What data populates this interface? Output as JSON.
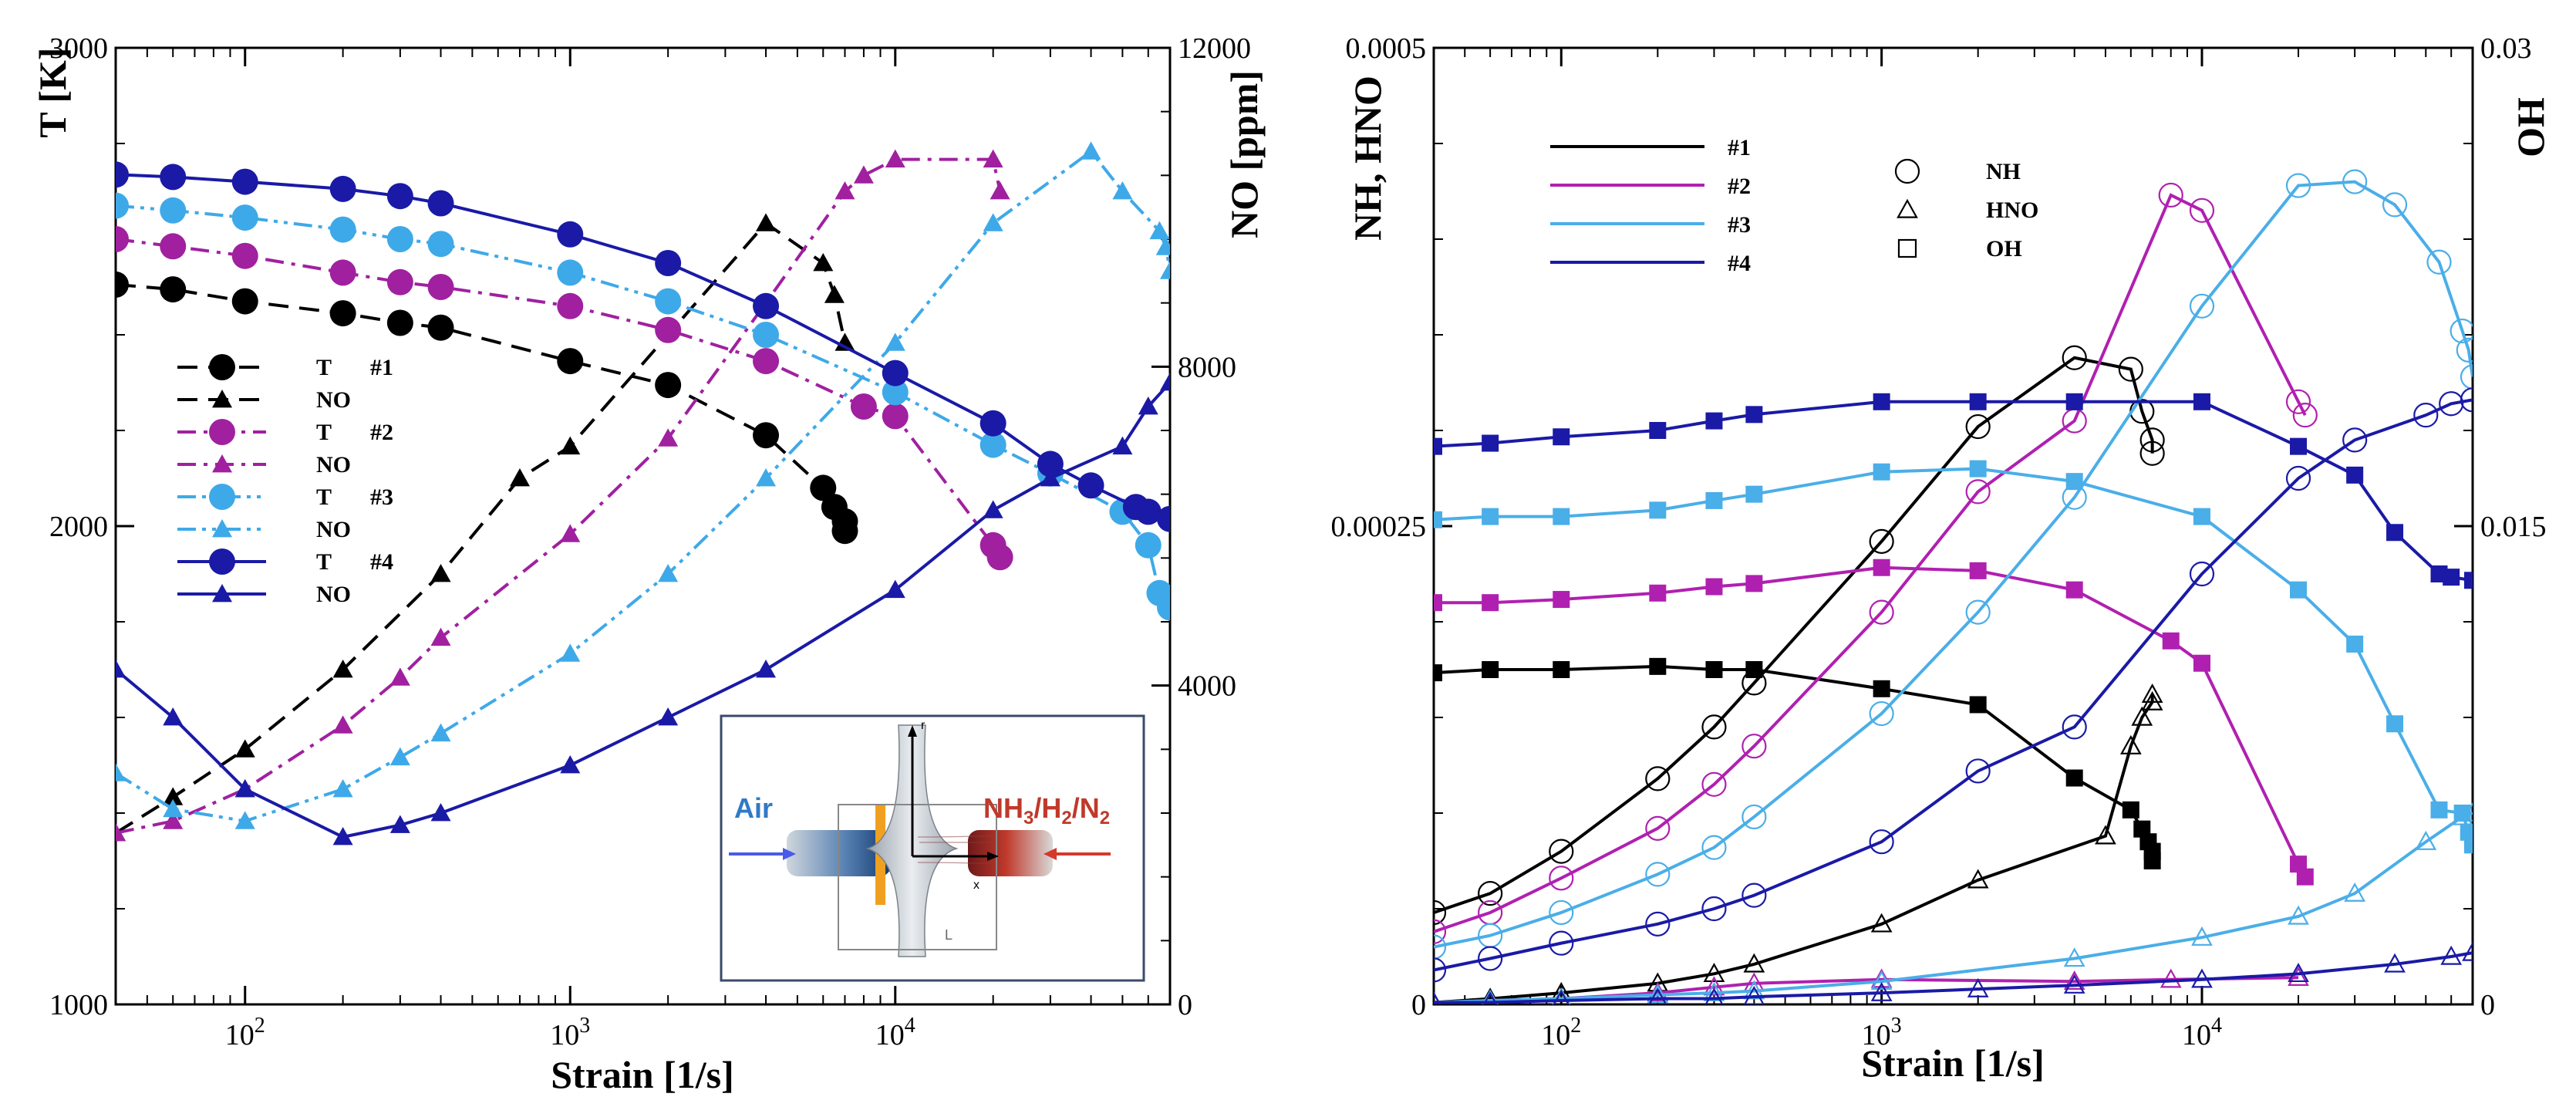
{
  "chart_data": [
    {
      "type": "line",
      "title": "",
      "xlabel": "Strain [1/s]",
      "ylabel": "T [K]",
      "y2label": "NO [ppm]",
      "xscale": "log",
      "xlim": [
        40,
        70000
      ],
      "ylim": [
        1000,
        3000
      ],
      "y2lim": [
        0,
        12000
      ],
      "xtick_labels": [
        "10^2",
        "10^3",
        "10^4"
      ],
      "xtick_values": [
        100,
        1000,
        10000
      ],
      "ytick_labels": [
        "1000",
        "2000",
        "3000"
      ],
      "ytick_values": [
        1000,
        2000,
        3000
      ],
      "y2tick_labels": [
        "0",
        "4000",
        "8000",
        "12000"
      ],
      "y2tick_values": [
        0,
        4000,
        8000,
        12000
      ],
      "legend": [
        {
          "label": "T",
          "case": "#1",
          "color": "#000000",
          "dash": "dash",
          "marker": "circle"
        },
        {
          "label": "NO",
          "case": "",
          "color": "#000000",
          "dash": "dash",
          "marker": "triangle"
        },
        {
          "label": "T",
          "case": "#2",
          "color": "#a020a0",
          "dash": "dashdot",
          "marker": "circle"
        },
        {
          "label": "NO",
          "case": "",
          "color": "#a020a0",
          "dash": "dashdot",
          "marker": "triangle"
        },
        {
          "label": "T",
          "case": "#3",
          "color": "#3ea9e8",
          "dash": "dashdotdot",
          "marker": "circle"
        },
        {
          "label": "NO",
          "case": "",
          "color": "#3ea9e8",
          "dash": "dashdotdot",
          "marker": "triangle"
        },
        {
          "label": "T",
          "case": "#4",
          "color": "#1a1aa6",
          "dash": "solid",
          "marker": "circle"
        },
        {
          "label": "NO",
          "case": "",
          "color": "#1a1aa6",
          "dash": "solid",
          "marker": "triangle"
        }
      ],
      "series": [
        {
          "name": "T #1",
          "axis": "left",
          "color": "#000000",
          "dash": "dash",
          "marker": "circle",
          "filled": true,
          "x": [
            40,
            60,
            100,
            200,
            300,
            400,
            1000,
            2000,
            4000,
            6000,
            6500,
            7000,
            7000
          ],
          "y": [
            2505,
            2495,
            2470,
            2445,
            2425,
            2415,
            2345,
            2295,
            2190,
            2080,
            2040,
            2010,
            1990
          ]
        },
        {
          "name": "NO #1",
          "axis": "right",
          "color": "#000000",
          "dash": "dash",
          "marker": "triangle",
          "filled": true,
          "x": [
            40,
            60,
            100,
            200,
            400,
            700,
            1000,
            4000,
            6000,
            6500,
            7000
          ],
          "y": [
            2150,
            2600,
            3200,
            4200,
            5400,
            6600,
            7000,
            9800,
            9300,
            8900,
            8300
          ]
        },
        {
          "name": "T #2",
          "axis": "left",
          "color": "#a020a0",
          "dash": "dashdot",
          "marker": "circle",
          "filled": true,
          "x": [
            40,
            60,
            100,
            200,
            300,
            400,
            1000,
            2000,
            4000,
            8000,
            10000,
            20000,
            21000
          ],
          "y": [
            2600,
            2585,
            2565,
            2530,
            2510,
            2500,
            2460,
            2410,
            2345,
            2250,
            2230,
            1960,
            1935
          ]
        },
        {
          "name": "NO #2",
          "axis": "right",
          "color": "#a020a0",
          "dash": "dashdot",
          "marker": "triangle",
          "filled": true,
          "x": [
            40,
            60,
            100,
            200,
            300,
            400,
            1000,
            2000,
            4000,
            7000,
            8000,
            10000,
            20000,
            21000
          ],
          "y": [
            2150,
            2300,
            2700,
            3500,
            4100,
            4600,
            5900,
            7100,
            8800,
            10200,
            10400,
            10600,
            10600,
            10200
          ]
        },
        {
          "name": "T #3",
          "axis": "left",
          "color": "#3ea9e8",
          "dash": "dashdotdot",
          "marker": "circle",
          "filled": true,
          "x": [
            40,
            60,
            100,
            200,
            300,
            400,
            1000,
            2000,
            4000,
            10000,
            20000,
            30000,
            50000,
            60000,
            65000,
            70000
          ],
          "y": [
            2670,
            2660,
            2645,
            2620,
            2600,
            2590,
            2530,
            2470,
            2400,
            2280,
            2170,
            2110,
            2030,
            1960,
            1860,
            1830
          ]
        },
        {
          "name": "NO #3",
          "axis": "right",
          "color": "#3ea9e8",
          "dash": "dashdotdot",
          "marker": "triangle",
          "filled": true,
          "x": [
            40,
            60,
            100,
            200,
            300,
            400,
            1000,
            2000,
            4000,
            10000,
            20000,
            40000,
            50000,
            65000,
            68000,
            70000
          ],
          "y": [
            2900,
            2450,
            2300,
            2700,
            3100,
            3400,
            4400,
            5400,
            6600,
            8300,
            9800,
            10700,
            10200,
            9700,
            9500,
            9200
          ]
        },
        {
          "name": "T #4",
          "axis": "left",
          "color": "#1a1aa6",
          "dash": "solid",
          "marker": "circle",
          "filled": true,
          "x": [
            40,
            60,
            100,
            200,
            300,
            400,
            1000,
            2000,
            4000,
            10000,
            20000,
            30000,
            40000,
            55000,
            60000,
            70000
          ],
          "y": [
            2735,
            2730,
            2720,
            2705,
            2690,
            2675,
            2610,
            2550,
            2460,
            2320,
            2215,
            2130,
            2085,
            2040,
            2030,
            2015
          ]
        },
        {
          "name": "NO #4",
          "axis": "right",
          "color": "#1a1aa6",
          "dash": "solid",
          "marker": "triangle",
          "filled": true,
          "x": [
            40,
            60,
            100,
            200,
            300,
            400,
            1000,
            2000,
            4000,
            10000,
            20000,
            30000,
            50000,
            60000,
            70000
          ],
          "y": [
            4200,
            3600,
            2700,
            2100,
            2250,
            2400,
            3000,
            3600,
            4200,
            5200,
            6200,
            6600,
            7000,
            7500,
            7800
          ]
        }
      ],
      "inset": {
        "left_label": "Air",
        "right_label": "NH",
        "right_sub1": "3",
        "right_mid1": "/H",
        "right_sub2": "2",
        "right_mid2": "/N",
        "right_sub3": "2",
        "axis_r": "r",
        "axis_x": "x",
        "axis_L": "L"
      }
    },
    {
      "type": "line",
      "title": "",
      "xlabel": "Strain [1/s]",
      "ylabel": "NH, HNO",
      "y2label": "OH",
      "xscale": "log",
      "xlim": [
        40,
        70000
      ],
      "ylim": [
        0,
        0.0005
      ],
      "y2lim": [
        0,
        0.03
      ],
      "xtick_labels": [
        "10^2",
        "10^3",
        "10^4"
      ],
      "xtick_values": [
        100,
        1000,
        10000
      ],
      "ytick_labels": [
        "0",
        "0.00025",
        "0.0005"
      ],
      "ytick_values": [
        0,
        0.00025,
        0.0005
      ],
      "y2tick_labels": [
        "0",
        "0.015",
        "0.03"
      ],
      "y2tick_values": [
        0,
        0.015,
        0.03
      ],
      "legend_cases": [
        {
          "label": "#1",
          "color": "#000000"
        },
        {
          "label": "#2",
          "color": "#b020b0"
        },
        {
          "label": "#3",
          "color": "#4aaee8"
        },
        {
          "label": "#4",
          "color": "#1a1aa6"
        }
      ],
      "legend_species": [
        {
          "label": "NH",
          "marker": "circle"
        },
        {
          "label": "HNO",
          "marker": "triangle"
        },
        {
          "label": "OH",
          "marker": "square"
        }
      ],
      "series": [
        {
          "name": "NH #1",
          "axis": "left",
          "color": "#000000",
          "marker": "circle",
          "filled": false,
          "x": [
            40,
            60,
            100,
            200,
            300,
            400,
            1000,
            2000,
            4000,
            6000,
            6500,
            7000,
            7000
          ],
          "y": [
            4.8e-05,
            5.8e-05,
            8e-05,
            0.000118,
            0.000145,
            0.000168,
            0.000242,
            0.000302,
            0.000338,
            0.000332,
            0.00031,
            0.000295,
            0.000288
          ]
        },
        {
          "name": "HNO #1",
          "axis": "left",
          "color": "#000000",
          "marker": "triangle",
          "filled": false,
          "x": [
            40,
            60,
            100,
            200,
            300,
            400,
            1000,
            2000,
            5000,
            6000,
            6500,
            7000,
            7000
          ],
          "y": [
            1e-06,
            3e-06,
            6e-06,
            1.1e-05,
            1.6e-05,
            2.1e-05,
            4.2e-05,
            6.5e-05,
            8.8e-05,
            0.000135,
            0.00015,
            0.000158,
            0.000162
          ]
        },
        {
          "name": "OH #1",
          "axis": "right",
          "color": "#000000",
          "marker": "square",
          "filled": true,
          "x": [
            40,
            60,
            100,
            200,
            300,
            400,
            1000,
            2000,
            4000,
            6000,
            6500,
            6800,
            7000,
            7000
          ],
          "y": [
            0.0104,
            0.0105,
            0.0105,
            0.0106,
            0.0105,
            0.0105,
            0.0099,
            0.0094,
            0.0071,
            0.0061,
            0.0055,
            0.0051,
            0.0048,
            0.0045
          ]
        },
        {
          "name": "NH #2",
          "axis": "left",
          "color": "#b020b0",
          "marker": "circle",
          "filled": false,
          "x": [
            40,
            60,
            100,
            200,
            300,
            400,
            1000,
            2000,
            4000,
            8000,
            10000,
            20000,
            21000
          ],
          "y": [
            3.8e-05,
            4.8e-05,
            6.6e-05,
            9.2e-05,
            0.000115,
            0.000135,
            0.000205,
            0.000268,
            0.000305,
            0.000423,
            0.000415,
            0.000315,
            0.000308
          ]
        },
        {
          "name": "HNO #2",
          "axis": "left",
          "color": "#b020b0",
          "marker": "triangle",
          "filled": false,
          "x": [
            40,
            60,
            100,
            200,
            300,
            400,
            1000,
            4000,
            8000,
            20000
          ],
          "y": [
            1e-06,
            2e-06,
            3e-06,
            6e-06,
            9e-06,
            1.1e-05,
            1.3e-05,
            1.2e-05,
            1.3e-05,
            1.4e-05
          ]
        },
        {
          "name": "OH #2",
          "axis": "right",
          "color": "#b020b0",
          "marker": "square",
          "filled": true,
          "x": [
            40,
            60,
            100,
            200,
            300,
            400,
            1000,
            2000,
            4000,
            8000,
            10000,
            20000,
            21000
          ],
          "y": [
            0.0126,
            0.0126,
            0.0127,
            0.0129,
            0.0131,
            0.0132,
            0.0137,
            0.0136,
            0.013,
            0.0114,
            0.0107,
            0.0044,
            0.004
          ]
        },
        {
          "name": "NH #3",
          "axis": "left",
          "color": "#4aaee8",
          "marker": "circle",
          "filled": false,
          "x": [
            40,
            60,
            100,
            200,
            300,
            400,
            1000,
            2000,
            4000,
            10000,
            20000,
            30000,
            40000,
            55000,
            65000,
            68000,
            70000
          ],
          "y": [
            3e-05,
            3.6e-05,
            4.8e-05,
            6.8e-05,
            8.2e-05,
            9.8e-05,
            0.000152,
            0.000205,
            0.000265,
            0.000365,
            0.000428,
            0.00043,
            0.000418,
            0.000388,
            0.000352,
            0.000342,
            0.000328
          ]
        },
        {
          "name": "HNO #3",
          "axis": "left",
          "color": "#4aaee8",
          "marker": "triangle",
          "filled": false,
          "x": [
            40,
            60,
            100,
            200,
            300,
            400,
            1000,
            4000,
            10000,
            20000,
            30000,
            50000,
            65000,
            70000
          ],
          "y": [
            1e-06,
            2e-06,
            3e-06,
            5e-06,
            6e-06,
            7e-06,
            1.2e-05,
            2.4e-05,
            3.5e-05,
            4.6e-05,
            5.8e-05,
            8.5e-05,
            9.8e-05,
            0.0001
          ]
        },
        {
          "name": "OH #3",
          "axis": "right",
          "color": "#4aaee8",
          "marker": "square",
          "filled": true,
          "x": [
            40,
            60,
            100,
            200,
            300,
            400,
            1000,
            2000,
            4000,
            10000,
            20000,
            30000,
            40000,
            55000,
            65000,
            68000,
            70000
          ],
          "y": [
            0.0152,
            0.0153,
            0.0153,
            0.0155,
            0.0158,
            0.016,
            0.0167,
            0.0168,
            0.0164,
            0.0153,
            0.013,
            0.0113,
            0.0088,
            0.0061,
            0.006,
            0.0054,
            0.005
          ]
        },
        {
          "name": "NH #4",
          "axis": "left",
          "color": "#1a1aa6",
          "marker": "circle",
          "filled": false,
          "x": [
            40,
            60,
            100,
            200,
            300,
            400,
            1000,
            2000,
            4000,
            10000,
            20000,
            30000,
            50000,
            60000,
            70000
          ],
          "y": [
            1.8e-05,
            2.4e-05,
            3.2e-05,
            4.2e-05,
            5e-05,
            5.7e-05,
            8.5e-05,
            0.000122,
            0.000145,
            0.000225,
            0.000275,
            0.000295,
            0.000308,
            0.000314,
            0.000316
          ]
        },
        {
          "name": "HNO #4",
          "axis": "left",
          "color": "#1a1aa6",
          "marker": "triangle",
          "filled": false,
          "x": [
            40,
            60,
            100,
            200,
            300,
            400,
            1000,
            2000,
            4000,
            10000,
            20000,
            40000,
            60000,
            70000
          ],
          "y": [
            1e-06,
            1e-06,
            2e-06,
            3e-06,
            3e-06,
            4e-06,
            6e-06,
            8e-06,
            1e-05,
            1.3e-05,
            1.6e-05,
            2.1e-05,
            2.5e-05,
            2.7e-05
          ]
        },
        {
          "name": "OH #4",
          "axis": "right",
          "color": "#1a1aa6",
          "marker": "square",
          "filled": true,
          "x": [
            40,
            60,
            100,
            200,
            300,
            400,
            1000,
            2000,
            4000,
            10000,
            20000,
            30000,
            40000,
            55000,
            60000,
            70000
          ],
          "y": [
            0.0175,
            0.0176,
            0.0178,
            0.018,
            0.0183,
            0.0185,
            0.0189,
            0.0189,
            0.0189,
            0.0189,
            0.0175,
            0.0166,
            0.0148,
            0.0135,
            0.0134,
            0.0133
          ]
        }
      ]
    }
  ]
}
